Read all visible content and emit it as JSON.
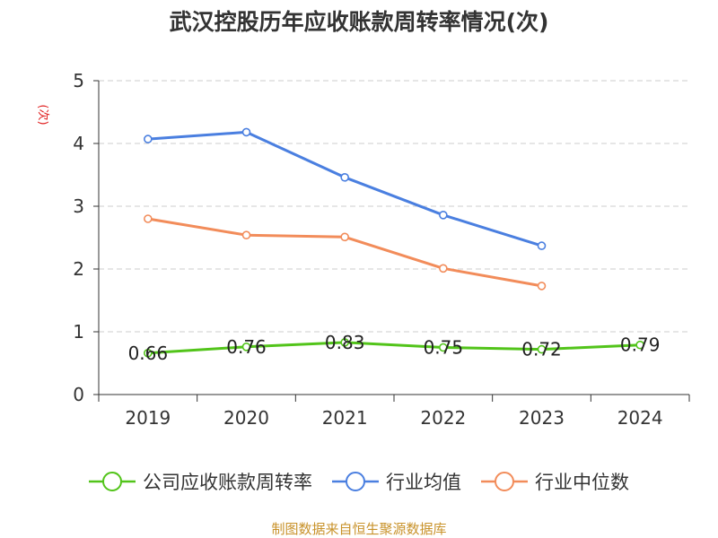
{
  "chart_data": {
    "type": "line",
    "title": "武汉控股历年应收账款周转率情况(次)",
    "ylabel": "(次)",
    "xlabel": "",
    "categories": [
      "2019",
      "2020",
      "2021",
      "2022",
      "2023",
      "2024"
    ],
    "ylim": [
      0,
      5
    ],
    "yticks": [
      0,
      1,
      2,
      3,
      4,
      5
    ],
    "grid": true,
    "legend_position": "bottom",
    "series": [
      {
        "name": "公司应收账款周转率",
        "color": "#52c41a",
        "values": [
          0.66,
          0.76,
          0.83,
          0.75,
          0.72,
          0.79
        ],
        "show_labels": true
      },
      {
        "name": "行业均值",
        "color": "#4a7fe0",
        "values": [
          4.07,
          4.18,
          3.46,
          2.86,
          2.37,
          null
        ],
        "show_labels": false
      },
      {
        "name": "行业中位数",
        "color": "#f28c5a",
        "values": [
          2.8,
          2.54,
          2.51,
          2.01,
          1.73,
          null
        ],
        "show_labels": false
      }
    ],
    "source": "制图数据来自恒生聚源数据库"
  }
}
